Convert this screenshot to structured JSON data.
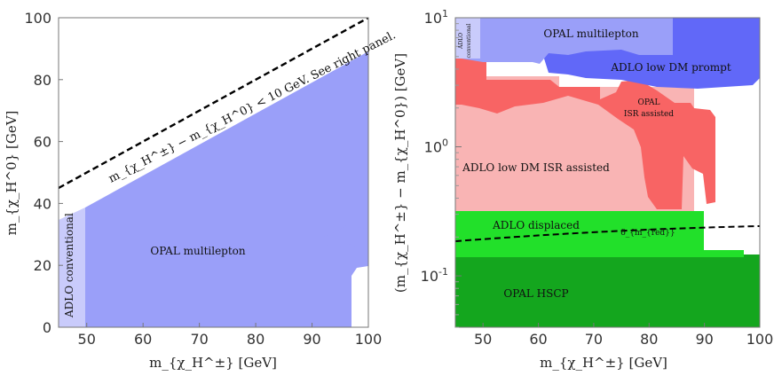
{
  "chart_data": [
    {
      "type": "area",
      "xlabel": "m_{χ_H^±} [GeV]",
      "ylabel": "m_{χ_H^0} [GeV]",
      "xlim": [
        45,
        100
      ],
      "ylim": [
        0,
        100
      ],
      "xticks": [
        "50",
        "60",
        "70",
        "80",
        "90",
        "100"
      ],
      "yticks": [
        "0",
        "20",
        "40",
        "60",
        "80",
        "100"
      ],
      "grid": false,
      "regions": [
        {
          "name": "OPAL multilepton",
          "color": "#9a9ff9",
          "polygon": [
            [
              50,
              0
            ],
            [
              50,
              39
            ],
            [
              100,
              90
            ],
            [
              100,
              14
            ],
            [
              97,
              12
            ],
            [
              97,
              0
            ]
          ]
        },
        {
          "name": "ADLO conventional",
          "color": "#c9cbfb",
          "polygon": [
            [
              45,
              0
            ],
            [
              45,
              35
            ],
            [
              50,
              39
            ],
            [
              50,
              0
            ]
          ]
        }
      ],
      "line": {
        "label": "m_{χ_H^±} − m_{χ_H^0} < 10 GeV. See right panel.",
        "style": "dashed",
        "points": [
          [
            45,
            45
          ],
          [
            100,
            100
          ]
        ]
      }
    },
    {
      "type": "area",
      "xlabel": "m_{χ_H^±} [GeV]",
      "ylabel": "(m_{χ_H^±} − m_{χ_H^0}) [GeV]",
      "xlim": [
        45,
        100
      ],
      "ylim": [
        0.04,
        10
      ],
      "yscale": "log",
      "xticks": [
        "50",
        "60",
        "70",
        "80",
        "90",
        "100"
      ],
      "ytick_labels": [
        "10^{-1}",
        "10^{0}",
        "10^{1}"
      ],
      "grid": false,
      "regions": [
        {
          "name": "OPAL HSCP",
          "color": "#14a61e",
          "x": [
            45,
            100
          ],
          "y": [
            0.04,
            0.14
          ]
        },
        {
          "name": "ADLO displaced",
          "color": "#22e02a",
          "x": [
            45,
            90
          ],
          "y": [
            0.14,
            0.31
          ]
        },
        {
          "name": "ADLO low DM ISR assisted",
          "color": "#f9b4b4",
          "x": [
            45,
            91
          ],
          "y": [
            0.31,
            3.2
          ]
        },
        {
          "name": "OPAL ISR assisted",
          "color": "#f86464",
          "x": [
            45,
            92
          ],
          "y": [
            0.35,
            5.5
          ]
        },
        {
          "name": "ADLO low DM prompt",
          "color": "#6168f8",
          "x": [
            61,
            100
          ],
          "y": [
            3,
            10
          ]
        },
        {
          "name": "OPAL multilepton",
          "color": "#9a9ff9",
          "x": [
            45,
            84
          ],
          "y": [
            4.5,
            10
          ]
        },
        {
          "name": "ADLO conventional",
          "color": "#c9cbfb",
          "x": [
            45,
            50
          ],
          "y": [
            6,
            10
          ]
        }
      ],
      "line": {
        "label": "δ_{m_{red}}",
        "style": "dashed",
        "points": [
          [
            45,
            0.185
          ],
          [
            100,
            0.235
          ]
        ]
      }
    }
  ],
  "labels": {
    "left_opal_multilepton": "OPAL multilepton",
    "left_adlo_conventional": "ADLO conventional",
    "right_opal_multilepton": "OPAL multilepton",
    "right_adlo_conventional_1": "ADLO",
    "right_adlo_conventional_2": "conventional",
    "right_adlo_low_dm_prompt": "ADLO low DM prompt",
    "right_opal_isr_1": "OPAL",
    "right_opal_isr_2": "ISR assisted",
    "right_adlo_low_dm_isr": "ADLO low DM ISR assisted",
    "right_adlo_displaced": "ADLO displaced",
    "right_opal_hscp": "OPAL HSCP"
  },
  "colors": {
    "opal_multilepton": "#9a9ff9",
    "adlo_conventional": "#c9cbfb",
    "adlo_low_dm_prompt": "#6168f8",
    "opal_isr": "#f86464",
    "adlo_low_dm_isr": "#f9b4b4",
    "adlo_displaced": "#22e02a",
    "opal_hscp": "#14a61e"
  }
}
